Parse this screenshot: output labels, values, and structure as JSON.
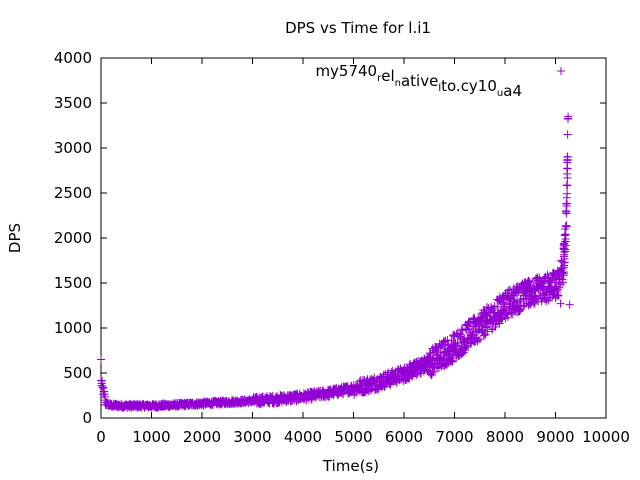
{
  "chart_data": {
    "type": "scatter",
    "title": "DPS vs Time for l.i1",
    "xlabel": "Time(s)",
    "ylabel": "DPS",
    "xlim": [
      0,
      10000
    ],
    "ylim": [
      0,
      4000
    ],
    "xticks": [
      0,
      1000,
      2000,
      3000,
      4000,
      5000,
      6000,
      7000,
      8000,
      9000,
      10000
    ],
    "yticks": [
      0,
      500,
      1000,
      1500,
      2000,
      2500,
      3000,
      3500,
      4000
    ],
    "grid": false,
    "legend_position": "top-right",
    "marker": "+",
    "series": [
      {
        "name_parts": [
          {
            "text": "my5740",
            "sub": false
          },
          {
            "text": "r",
            "sub": true
          },
          {
            "text": "el",
            "sub": false
          },
          {
            "text": "n",
            "sub": true
          },
          {
            "text": "ative",
            "sub": false
          },
          {
            "text": "l",
            "sub": true
          },
          {
            "text": "to.cy10",
            "sub": false
          },
          {
            "text": "u",
            "sub": true
          },
          {
            "text": "a4",
            "sub": false
          }
        ],
        "color": "#9400d3",
        "trend": [
          [
            0,
            400
          ],
          [
            30,
            330
          ],
          [
            60,
            260
          ],
          [
            100,
            160
          ],
          [
            200,
            140
          ],
          [
            500,
            135
          ],
          [
            1000,
            135
          ],
          [
            1500,
            145
          ],
          [
            2000,
            160
          ],
          [
            2500,
            175
          ],
          [
            3000,
            190
          ],
          [
            3500,
            210
          ],
          [
            4000,
            235
          ],
          [
            4500,
            275
          ],
          [
            5000,
            330
          ],
          [
            5500,
            400
          ],
          [
            6000,
            490
          ],
          [
            6500,
            610
          ],
          [
            7000,
            790
          ],
          [
            7500,
            1020
          ],
          [
            8000,
            1250
          ],
          [
            8500,
            1400
          ],
          [
            9000,
            1470
          ],
          [
            9100,
            1520
          ],
          [
            9150,
            1650
          ],
          [
            9200,
            2000
          ],
          [
            9230,
            2600
          ],
          [
            9250,
            3300
          ]
        ],
        "outliers": [
          [
            0,
            650
          ],
          [
            9280,
            1260
          ],
          [
            9250,
            3350
          ],
          [
            9240,
            3150
          ],
          [
            9235,
            2900
          ]
        ]
      }
    ]
  }
}
